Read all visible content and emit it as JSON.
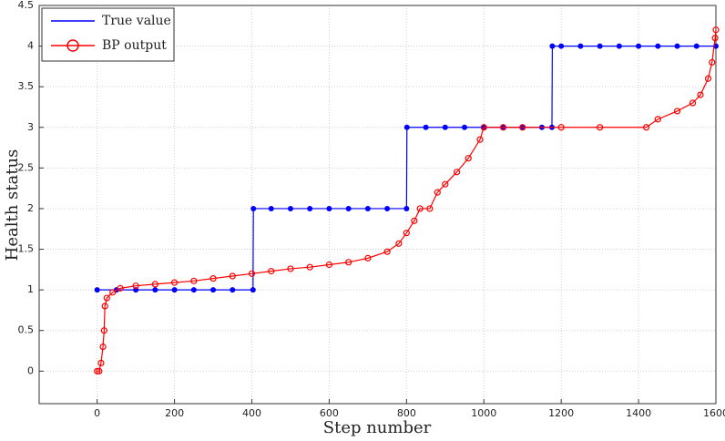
{
  "chart_data": {
    "type": "line",
    "xlabel": "Step number",
    "ylabel": "Health status",
    "xlim": [
      -150,
      1600
    ],
    "ylim": [
      -0.4,
      4.5
    ],
    "xticks": [
      0,
      200,
      400,
      600,
      800,
      1000,
      1200,
      1400,
      1600
    ],
    "yticks": [
      0,
      0.5,
      1,
      1.5,
      2,
      2.5,
      3,
      3.5,
      4,
      4.5
    ],
    "grid": true,
    "legend": "upper-left",
    "series": [
      {
        "name": "True value",
        "color": "#0000ff",
        "marker": "dot",
        "x": [
          0,
          50,
          100,
          150,
          200,
          250,
          300,
          350,
          403,
          404,
          450,
          500,
          550,
          600,
          650,
          700,
          750,
          800,
          801,
          850,
          900,
          950,
          1000,
          1050,
          1100,
          1150,
          1176,
          1177,
          1200,
          1250,
          1300,
          1350,
          1400,
          1450,
          1500,
          1550,
          1600
        ],
        "values": [
          1,
          1,
          1,
          1,
          1,
          1,
          1,
          1,
          1,
          2,
          2,
          2,
          2,
          2,
          2,
          2,
          2,
          2,
          3,
          3,
          3,
          3,
          3,
          3,
          3,
          3,
          3,
          4,
          4,
          4,
          4,
          4,
          4,
          4,
          4,
          4,
          4
        ]
      },
      {
        "name": "BP output",
        "color": "#ff0000",
        "marker": "circle",
        "x": [
          0,
          5,
          10,
          15,
          18,
          20,
          25,
          40,
          60,
          100,
          150,
          200,
          250,
          300,
          350,
          400,
          450,
          500,
          550,
          600,
          650,
          700,
          750,
          780,
          800,
          820,
          835,
          860,
          880,
          900,
          930,
          960,
          990,
          1000,
          1050,
          1100,
          1200,
          1300,
          1420,
          1450,
          1500,
          1540,
          1560,
          1580,
          1590,
          1598,
          1600
        ],
        "values": [
          0,
          0,
          0.1,
          0.3,
          0.5,
          0.8,
          0.9,
          0.97,
          1.02,
          1.05,
          1.07,
          1.09,
          1.11,
          1.14,
          1.17,
          1.2,
          1.23,
          1.26,
          1.28,
          1.31,
          1.34,
          1.39,
          1.47,
          1.57,
          1.7,
          1.85,
          2,
          2,
          2.2,
          2.3,
          2.45,
          2.62,
          2.85,
          3,
          3,
          3,
          3,
          3,
          3,
          3.1,
          3.2,
          3.3,
          3.4,
          3.6,
          3.8,
          4.1,
          4.2
        ]
      }
    ]
  }
}
